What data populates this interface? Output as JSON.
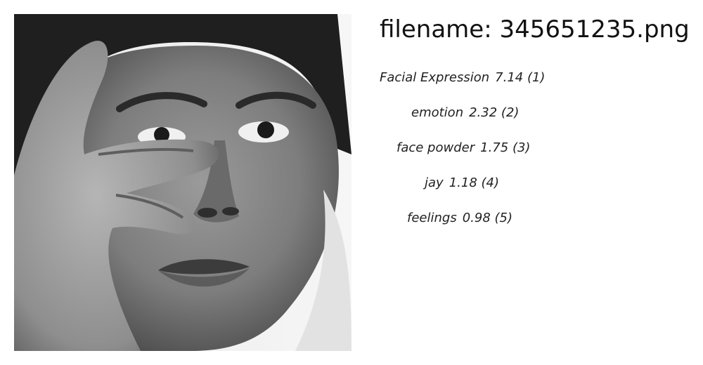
{
  "filename_prefix": "filename: ",
  "filename": "345651235.png",
  "labels": [
    {
      "name": "Facial Expression",
      "score": "7.14",
      "rank": "(1)"
    },
    {
      "name": "emotion",
      "score": "2.32",
      "rank": "(2)"
    },
    {
      "name": "face powder",
      "score": "1.75",
      "rank": "(3)"
    },
    {
      "name": "jay",
      "score": "1.18",
      "rank": "(4)"
    },
    {
      "name": "feelings",
      "score": "0.98",
      "rank": "(5)"
    }
  ]
}
